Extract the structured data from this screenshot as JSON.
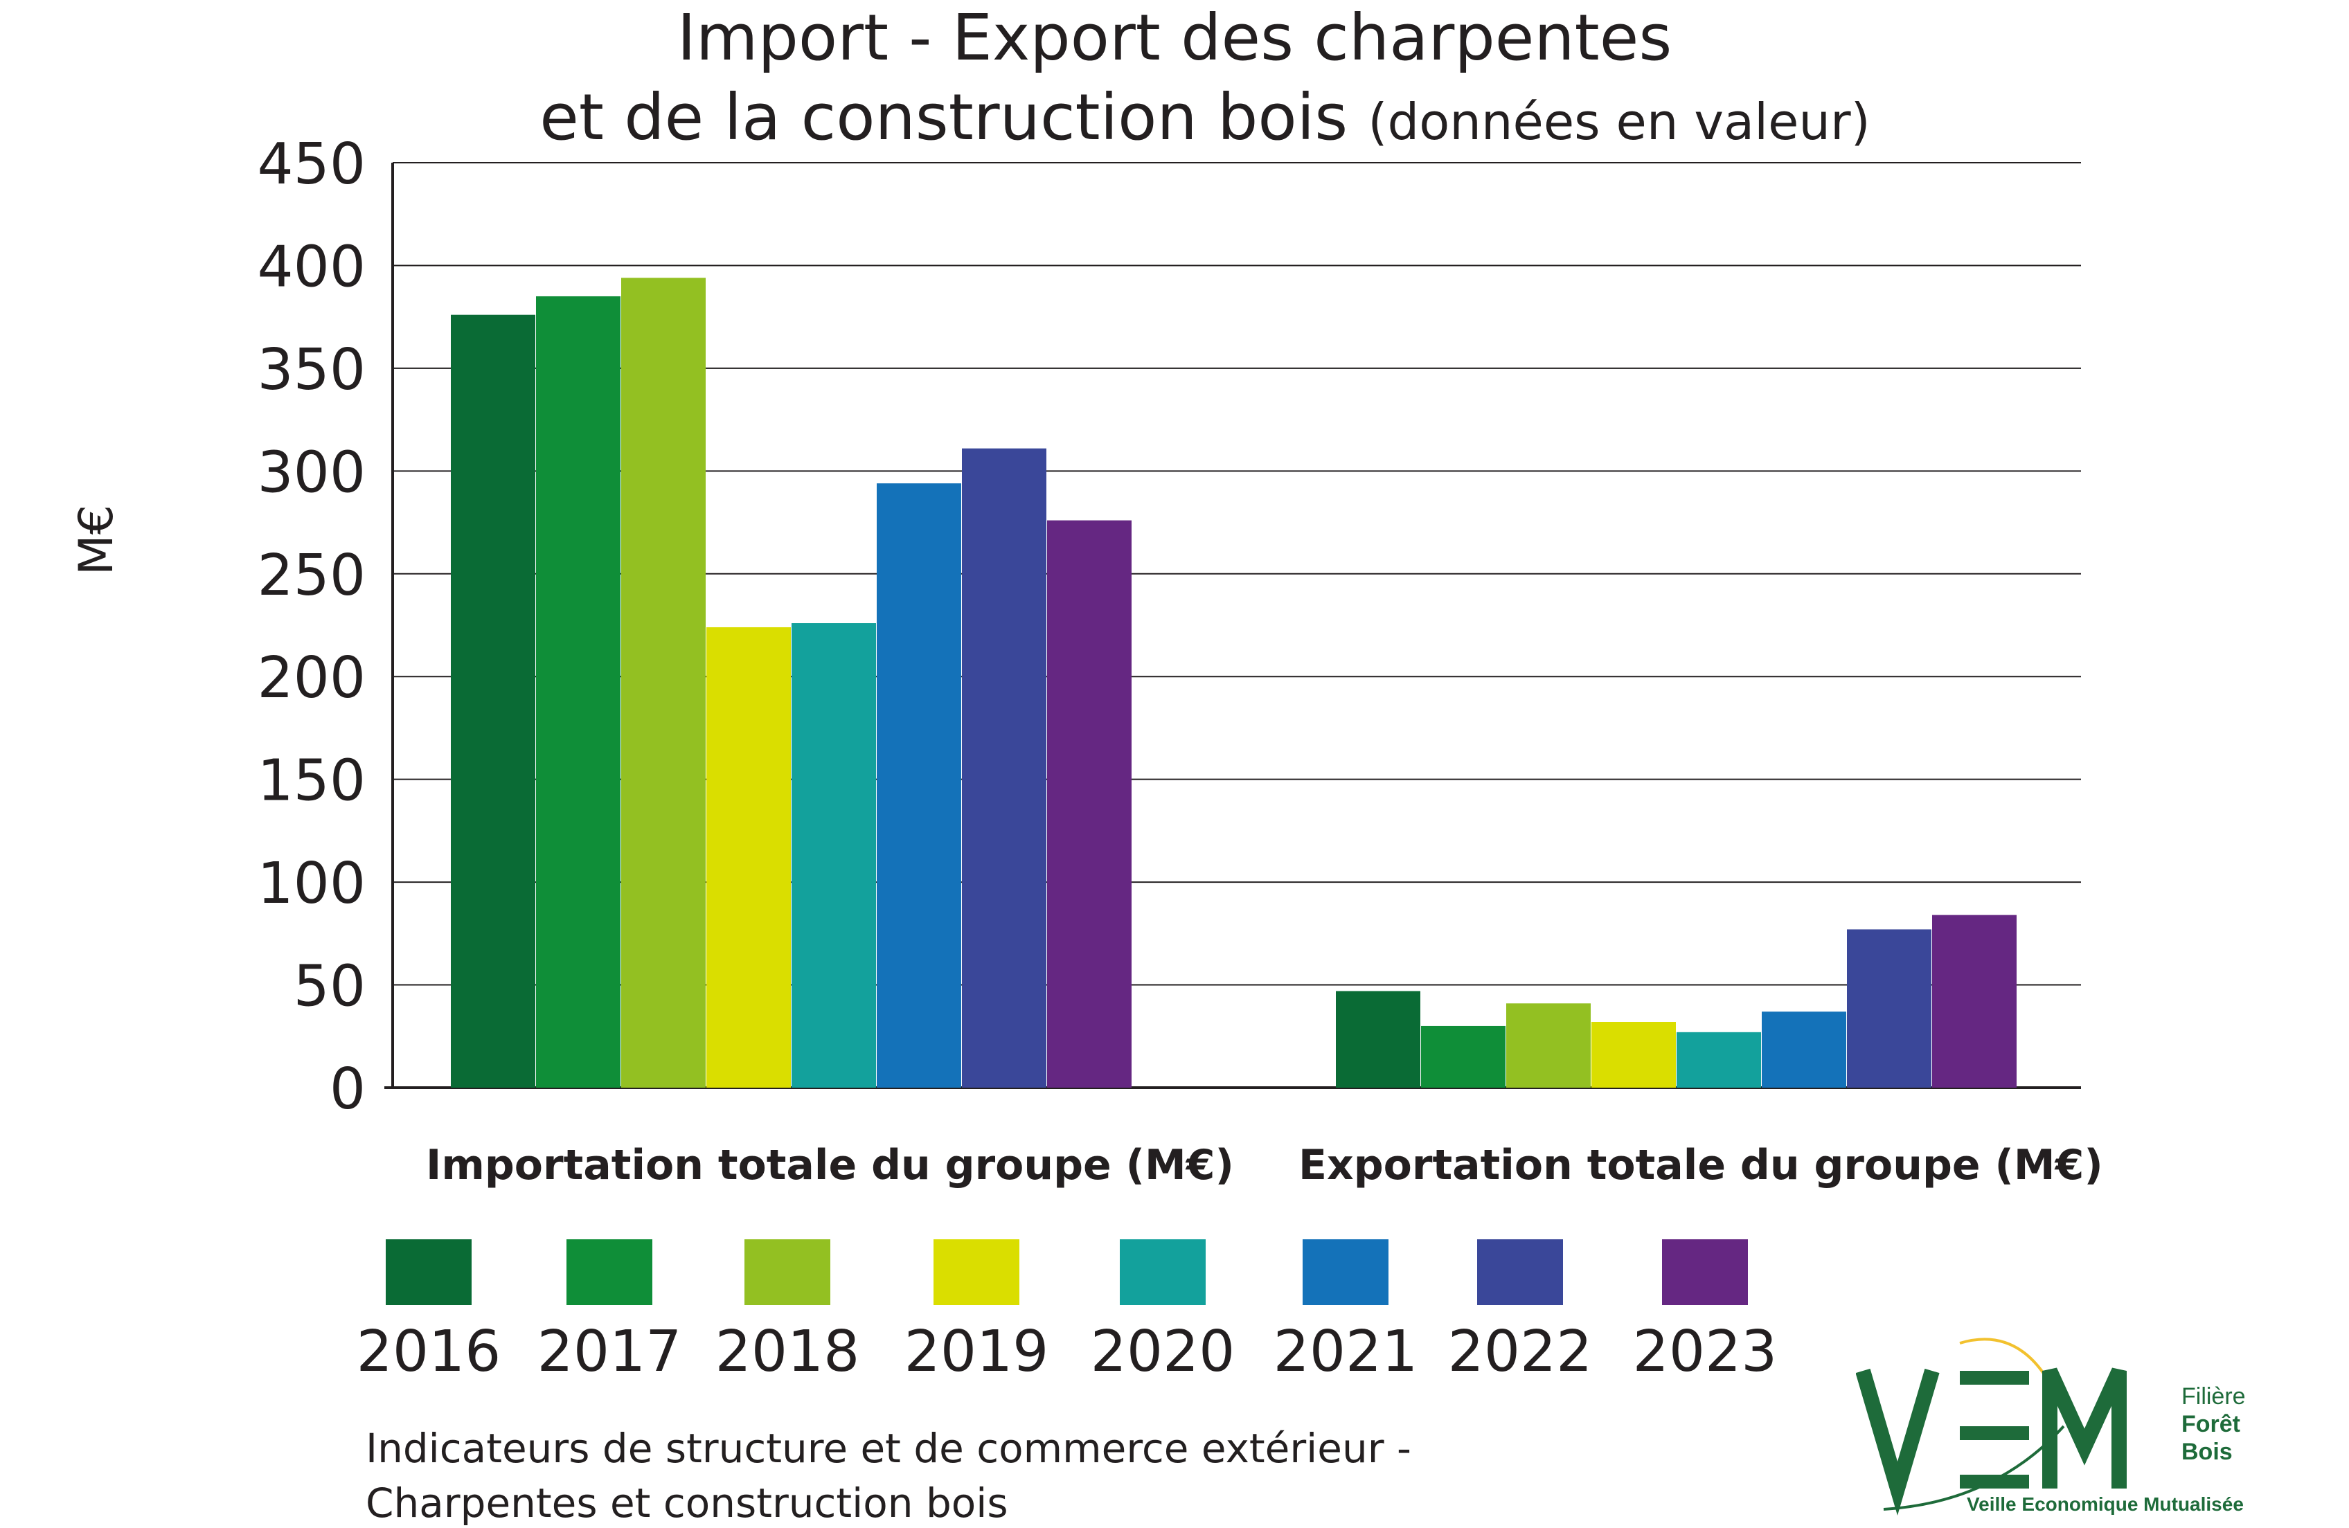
{
  "title": {
    "line1": "Import - Export des charpentes",
    "line2_main": "et de la construction bois",
    "line2_sub": "(données en valeur)"
  },
  "chart_data": {
    "type": "bar",
    "title": "Import - Export des charpentes et de la construction bois (données en valeur)",
    "ylabel": "M€",
    "xlabel": "",
    "ylim": [
      0,
      450
    ],
    "yticks": [
      "0",
      "50",
      "100",
      "150",
      "200",
      "250",
      "300",
      "350",
      "400",
      "450"
    ],
    "grid": true,
    "legend_position": "bottom",
    "categories": [
      "Importation totale du groupe (M€)",
      "Exportation totale du groupe (M€)"
    ],
    "series": [
      {
        "name": "2016",
        "color": "#0a6b35",
        "values": [
          376,
          47
        ]
      },
      {
        "name": "2017",
        "color": "#0f8e38",
        "values": [
          385,
          30
        ]
      },
      {
        "name": "2018",
        "color": "#93c022",
        "values": [
          394,
          41
        ]
      },
      {
        "name": "2019",
        "color": "#dade00",
        "values": [
          224,
          32
        ]
      },
      {
        "name": "2020",
        "color": "#13a19c",
        "values": [
          226,
          27
        ]
      },
      {
        "name": "2021",
        "color": "#1472b9",
        "values": [
          294,
          37
        ]
      },
      {
        "name": "2022",
        "color": "#3a4799",
        "values": [
          311,
          77
        ]
      },
      {
        "name": "2023",
        "color": "#652782",
        "values": [
          276,
          84
        ]
      }
    ]
  },
  "footer": {
    "note_line1": "Indicateurs de structure et de commerce extérieur -",
    "note_line2": "Charpentes et construction bois"
  },
  "logo": {
    "letters": "VEM",
    "line1": "Filière",
    "line2": "Forêt",
    "line3": "Bois",
    "tagline": "Veille Economique Mutualisée",
    "green": "#1e6b3a",
    "yellow": "#f2c12e"
  }
}
